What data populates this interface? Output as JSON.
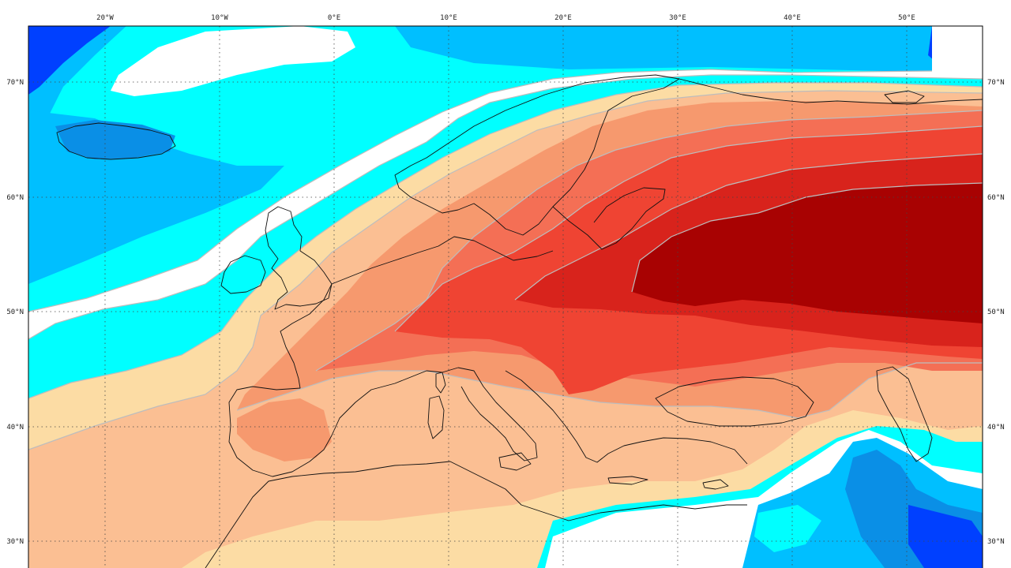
{
  "map": {
    "colors": {
      "white": "#ffffff",
      "cyan": "#00ffff",
      "sky": "#00bfff",
      "blue": "#0a8fe6",
      "darkblue": "#0040ff",
      "navy": "#0a1e8c",
      "cream": "#fcdca4",
      "peach": "#fbbf93",
      "salmon": "#f6996e",
      "coral": "#f46f55",
      "red": "#ef4433",
      "crimson": "#d8231c",
      "darkred": "#a80202",
      "contour": "#bdbdbd",
      "coast": "#111111"
    },
    "top_longitude_labels": [
      {
        "id": "lon-20w",
        "text": "20°W"
      },
      {
        "id": "lon-10w",
        "text": "10°W"
      },
      {
        "id": "lon-0e",
        "text": "0°E"
      },
      {
        "id": "lon-10e",
        "text": "10°E"
      },
      {
        "id": "lon-20e",
        "text": "20°E"
      },
      {
        "id": "lon-30e",
        "text": "30°E"
      },
      {
        "id": "lon-40e",
        "text": "40°E"
      },
      {
        "id": "lon-50e",
        "text": "50°E"
      }
    ],
    "left_latitude_labels": [
      {
        "id": "lat-70n-left",
        "text": "70°N"
      },
      {
        "id": "lat-60n-left",
        "text": "60°N"
      },
      {
        "id": "lat-50n-left",
        "text": "50°N"
      },
      {
        "id": "lat-40n-left",
        "text": "40°N"
      },
      {
        "id": "lat-30n-left",
        "text": "30°N"
      }
    ],
    "right_latitude_labels": [
      {
        "id": "lat-70n-right",
        "text": "70°N"
      },
      {
        "id": "lat-60n-right",
        "text": "60°N"
      },
      {
        "id": "lat-50n-right",
        "text": "50°N"
      },
      {
        "id": "lat-40n-right",
        "text": "40°N"
      },
      {
        "id": "lat-30n-right",
        "text": "30°N"
      }
    ]
  }
}
